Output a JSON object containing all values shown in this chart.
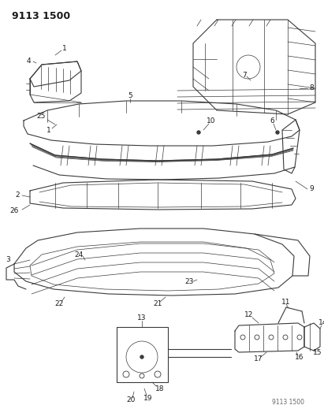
{
  "title_top_left": "9113 1500",
  "title_bottom_right": "9113 1500",
  "bg_color": "#ffffff",
  "line_color": "#3a3a3a",
  "label_color": "#1a1a1a",
  "title_fontsize": 9,
  "label_fontsize": 6.5,
  "fig_w": 4.11,
  "fig_h": 5.33,
  "dpi": 100
}
